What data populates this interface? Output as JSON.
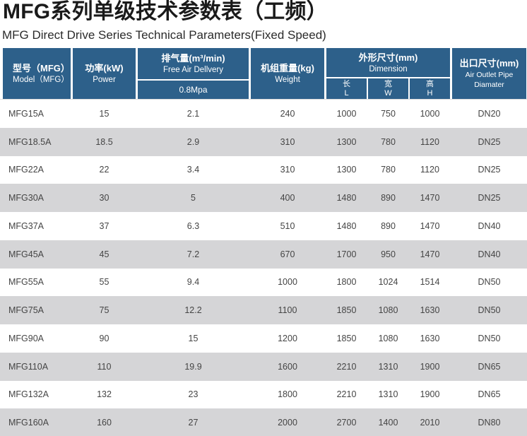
{
  "page": {
    "title": "MFG系列单级技术参数表（工频）",
    "subtitle": "MFG Direct Drive Series Technical Parameters(Fixed Speed)"
  },
  "colors": {
    "header_bg": "#2d608a",
    "header_text": "#ffffff",
    "row_alt_bg": "#d5d5d7",
    "body_text": "#454545",
    "title_text": "#1a1a1a"
  },
  "table": {
    "header": {
      "model": {
        "zh": "型号（MFG）",
        "en": "Model（MFG）"
      },
      "power": {
        "zh": "功率(kW)",
        "en": "Power"
      },
      "fad": {
        "zh": "排气量(m³/min)",
        "en": "Free Air Dellvery",
        "pressure": "0.8Mpa"
      },
      "weight": {
        "zh": "机组重量(kg)",
        "en": "Weight"
      },
      "dimension": {
        "zh": "外形尺寸(mm)",
        "en": "Dimension",
        "sub": [
          {
            "zh": "长",
            "en": "L"
          },
          {
            "zh": "宽",
            "en": "W"
          },
          {
            "zh": "高",
            "en": "H"
          }
        ]
      },
      "outlet": {
        "zh": "出口尺寸(mm)",
        "en": "Air Outlet Pipe Diamater"
      }
    },
    "rows": [
      {
        "model": "MFG15A",
        "power": "15",
        "fad": "2.1",
        "weight": "240",
        "l": "1000",
        "w": "750",
        "h": "1000",
        "outlet": "DN20"
      },
      {
        "model": "MFG18.5A",
        "power": "18.5",
        "fad": "2.9",
        "weight": "310",
        "l": "1300",
        "w": "780",
        "h": "1120",
        "outlet": "DN25"
      },
      {
        "model": "MFG22A",
        "power": "22",
        "fad": "3.4",
        "weight": "310",
        "l": "1300",
        "w": "780",
        "h": "1120",
        "outlet": "DN25"
      },
      {
        "model": "MFG30A",
        "power": "30",
        "fad": "5",
        "weight": "400",
        "l": "1480",
        "w": "890",
        "h": "1470",
        "outlet": "DN25"
      },
      {
        "model": "MFG37A",
        "power": "37",
        "fad": "6.3",
        "weight": "510",
        "l": "1480",
        "w": "890",
        "h": "1470",
        "outlet": "DN40"
      },
      {
        "model": "MFG45A",
        "power": "45",
        "fad": "7.2",
        "weight": "670",
        "l": "1700",
        "w": "950",
        "h": "1470",
        "outlet": "DN40"
      },
      {
        "model": "MFG55A",
        "power": "55",
        "fad": "9.4",
        "weight": "1000",
        "l": "1800",
        "w": "1024",
        "h": "1514",
        "outlet": "DN50"
      },
      {
        "model": "MFG75A",
        "power": "75",
        "fad": "12.2",
        "weight": "1100",
        "l": "1850",
        "w": "1080",
        "h": "1630",
        "outlet": "DN50"
      },
      {
        "model": "MFG90A",
        "power": "90",
        "fad": "15",
        "weight": "1200",
        "l": "1850",
        "w": "1080",
        "h": "1630",
        "outlet": "DN50"
      },
      {
        "model": "MFG110A",
        "power": "110",
        "fad": "19.9",
        "weight": "1600",
        "l": "2210",
        "w": "1310",
        "h": "1900",
        "outlet": "DN65"
      },
      {
        "model": "MFG132A",
        "power": "132",
        "fad": "23",
        "weight": "1800",
        "l": "2210",
        "w": "1310",
        "h": "1900",
        "outlet": "DN65"
      },
      {
        "model": "MFG160A",
        "power": "160",
        "fad": "27",
        "weight": "2000",
        "l": "2700",
        "w": "1400",
        "h": "2010",
        "outlet": "DN80"
      }
    ]
  }
}
